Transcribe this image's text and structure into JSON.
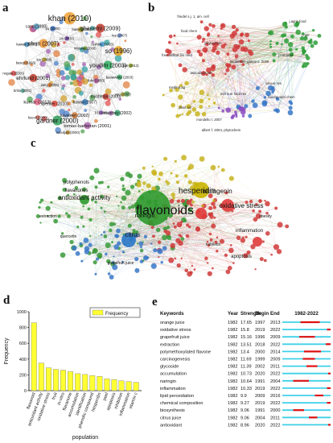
{
  "panels": {
    "a": {
      "letter": "a",
      "nodes": [
        {
          "label": "fuhr (1993)",
          "color": "#b35a9d",
          "size": 6
        },
        {
          "label": "jiang (2005)",
          "color": "#e07a2a",
          "size": 5
        },
        {
          "label": "miyrasa (2006)",
          "color": "#6a9a3c",
          "size": 5
        },
        {
          "label": "kawaii (2007)",
          "color": "#3b82c4",
          "size": 7
        },
        {
          "label": "lee (2008)",
          "color": "#d2b12c",
          "size": 5
        },
        {
          "label": "youdim (2003)",
          "color": "#2fae62",
          "size": 10
        },
        {
          "label": "spencer (2010)",
          "color": "#e04c3c",
          "size": 7
        },
        {
          "label": "pu (2011)",
          "color": "#7a4ab0",
          "size": 5
        },
        {
          "label": "middleton (2000)",
          "color": "#c0392b",
          "size": 7
        },
        {
          "label": "ehrlund (2001)",
          "color": "#c0392b",
          "size": 9
        },
        {
          "label": "cushnie (2005)",
          "color": "#4aa0d8",
          "size": 6
        },
        {
          "label": "havsteen (2002)",
          "color": "#d07a3a",
          "size": 7
        },
        {
          "label": "chun (2007)",
          "color": "#f09a3a",
          "size": 10
        },
        {
          "label": "benavente (2003)",
          "color": "#3aa66a",
          "size": 6
        },
        {
          "label": "kumar (2013)",
          "color": "#e86a8a",
          "size": 8
        },
        {
          "label": "bates (2000)",
          "color": "#8aa840",
          "size": 5
        },
        {
          "label": "li (1998)",
          "color": "#9a60c0",
          "size": 5
        },
        {
          "label": "basey (1993)",
          "color": "#c87a3a",
          "size": 5
        },
        {
          "label": "so (1996)",
          "color": "#e0a020",
          "size": 11
        },
        {
          "label": "gardner (2000)",
          "color": "#2f9e5a",
          "size": 11
        },
        {
          "label": "yu (2005)",
          "color": "#3a70c0",
          "size": 6
        },
        {
          "label": "yao (2003)",
          "color": "#b0b040",
          "size": 5
        },
        {
          "label": "britto (2001)",
          "color": "#60b0a0",
          "size": 5
        },
        {
          "label": "ghasemi (2009)",
          "color": "#c0392b",
          "size": 10
        },
        {
          "label": "tomas-barberan (2001)",
          "color": "#b06ab0",
          "size": 8
        },
        {
          "label": "kawaii (2007)",
          "color": "#4a90c0",
          "size": 6
        },
        {
          "label": "yan (2013)",
          "color": "#9ab030",
          "size": 5
        },
        {
          "label": "keevil (2000)",
          "color": "#d07060",
          "size": 5
        },
        {
          "label": "khan (2010)",
          "color": "#f0a030",
          "size": 14
        },
        {
          "label": "manthey (2002)",
          "color": "#3aa070",
          "size": 7
        },
        {
          "label": "nogata (2006)",
          "color": "#e05050",
          "size": 6
        },
        {
          "label": "lee (2007)",
          "color": "#7090d0",
          "size": 5
        },
        {
          "label": "outedjan (2000)",
          "color": "#c09030",
          "size": 5
        },
        {
          "label": "cano (1998)",
          "color": "#5aa0c0",
          "size": 7
        }
      ]
    },
    "b": {
      "letter": "b",
      "labels": [
        {
          "text": "friedel s.j. 1, am. cell",
          "color": "#c0392b"
        },
        {
          "text": "j.agric food",
          "color": "#2f8e3a"
        },
        {
          "text": "food chem",
          "color": "#c0392b"
        },
        {
          "text": "j.nutr",
          "color": "#2f8e3a"
        },
        {
          "text": "phytochem",
          "color": "#c0392b"
        },
        {
          "text": "j.nat prod",
          "color": "#2f8e3a"
        },
        {
          "text": "free radical bio med",
          "color": "#c0392b"
        },
        {
          "text": "benavente-garcia o. 2008",
          "color": "#3a6fb0"
        },
        {
          "text": "anticancer res",
          "color": "#c0392b"
        },
        {
          "text": "cancer res",
          "color": "#3a6fb0"
        },
        {
          "text": "medina ag",
          "color": "#b8a420"
        },
        {
          "text": "mol nutr food res",
          "color": "#7a4ab0"
        },
        {
          "text": "bioorg med chem",
          "color": "#3a6fb0"
        },
        {
          "text": "plant sci",
          "color": "#b8a420"
        },
        {
          "text": "mondello l. 2007",
          "color": "#b8a420"
        },
        {
          "text": "albert f. 2004, phytochem",
          "color": "#7a4ab0"
        }
      ]
    },
    "c": {
      "letter": "c",
      "labels": [
        {
          "text": "flavonoids",
          "color": "#2e8b2e",
          "size": 16
        },
        {
          "text": "hesperidin",
          "color": "#b8a300",
          "size": 10
        },
        {
          "text": "antioxidant activity",
          "color": "#2e8b2e",
          "size": 8
        },
        {
          "text": "naringenin",
          "color": "#d03030",
          "size": 8
        },
        {
          "text": "oxidative stress",
          "color": "#d03030",
          "size": 8
        },
        {
          "text": "citrus",
          "color": "#2a70c0",
          "size": 8
        },
        {
          "text": "naringin",
          "color": "#2a70c0",
          "size": 7
        },
        {
          "text": "polyphenols",
          "color": "#2e8b2e",
          "size": 6
        },
        {
          "text": "flavanones",
          "color": "#2e8b2e",
          "size": 6
        },
        {
          "text": "apoptosis",
          "color": "#d03030",
          "size": 6
        },
        {
          "text": "inflammation",
          "color": "#d03030",
          "size": 6
        },
        {
          "text": "extraction",
          "color": "#2e8b2e",
          "size": 5
        },
        {
          "text": "quercetin",
          "color": "#2e8b2e",
          "size": 5
        },
        {
          "text": "nobiletin",
          "color": "#d03030",
          "size": 5
        },
        {
          "text": "obesity",
          "color": "#d03030",
          "size": 5
        },
        {
          "text": "grapefruit juice",
          "color": "#2a70c0",
          "size": 5
        }
      ]
    },
    "d": {
      "letter": "d",
      "chart_data": {
        "type": "bar",
        "categories": [
          "flavonoid",
          "antioxidant activity",
          "oxidative stress",
          "fruit",
          "in-vitro",
          "flavanone",
          "accumulation",
          "identification",
          "phenolic compound",
          "hesperidin",
          "peel",
          "apoptosis",
          "inhibition",
          "inflammation",
          "vitamin c"
        ],
        "values": [
          860,
          350,
          290,
          270,
          260,
          240,
          215,
          205,
          190,
          180,
          150,
          140,
          125,
          115,
          105
        ],
        "xlabel": "population",
        "ylabel": "Frequency",
        "ylim": [
          0,
          1000
        ],
        "yticks": [
          0,
          200,
          400,
          600,
          800,
          1000
        ],
        "legend": "Frequency",
        "legend_position": "top-right",
        "bar_color": "#ffff33",
        "grid": false
      }
    },
    "e": {
      "letter": "e",
      "header": {
        "keywords": "Keywords",
        "year": "Year",
        "strength": "Strength",
        "begin": "Begin",
        "end": "End",
        "range": "1982-2022"
      },
      "range_start": 1982,
      "range_end": 2022,
      "rows": [
        {
          "keyword": "orange juice",
          "year": "1982",
          "strength": "17.65",
          "begin": "1997",
          "end": "2013"
        },
        {
          "keyword": "oxidative stress",
          "year": "1982",
          "strength": "15.8",
          "begin": "2019",
          "end": "2022"
        },
        {
          "keyword": "grapefruit juice",
          "year": "1982",
          "strength": "15.16",
          "begin": "1996",
          "end": "2009"
        },
        {
          "keyword": "extraction",
          "year": "1982",
          "strength": "13.51",
          "begin": "2018",
          "end": "2022"
        },
        {
          "keyword": "polymethoxylated flavone",
          "year": "1982",
          "strength": "13.4",
          "begin": "2000",
          "end": "2014"
        },
        {
          "keyword": "carcinogenesis",
          "year": "1982",
          "strength": "11.69",
          "begin": "1999",
          "end": "2009"
        },
        {
          "keyword": "glycoside",
          "year": "1982",
          "strength": "11.39",
          "begin": "2002",
          "end": "2011"
        },
        {
          "keyword": "accumulation",
          "year": "1982",
          "strength": "10.73",
          "begin": "2020",
          "end": "2022"
        },
        {
          "keyword": "naringin",
          "year": "1982",
          "strength": "10.64",
          "begin": "1991",
          "end": "2004"
        },
        {
          "keyword": "inflammation",
          "year": "1982",
          "strength": "10.33",
          "begin": "2019",
          "end": "2022"
        },
        {
          "keyword": "lipid peroxidation",
          "year": "1982",
          "strength": "9.9",
          "begin": "2009",
          "end": "2016"
        },
        {
          "keyword": "chemical composition",
          "year": "1982",
          "strength": "9.27",
          "begin": "2019",
          "end": "2022"
        },
        {
          "keyword": "biosynthesis",
          "year": "1982",
          "strength": "9.06",
          "begin": "1991",
          "end": "2000"
        },
        {
          "keyword": "citrus juice",
          "year": "1982",
          "strength": "9.06",
          "begin": "2004",
          "end": "2011"
        },
        {
          "keyword": "antioxidant",
          "year": "1982",
          "strength": "8.96",
          "begin": "2020",
          "end": "2022"
        }
      ],
      "colors": {
        "base": "#3fd0e8",
        "burst": "#e01010"
      }
    }
  }
}
